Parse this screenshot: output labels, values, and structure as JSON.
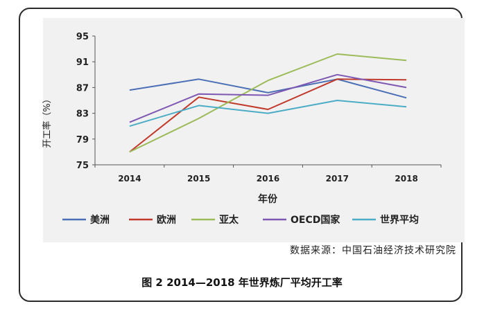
{
  "chart_data": {
    "type": "line",
    "ylabel": "开工率（%）",
    "xlabel": "年份",
    "categories": [
      "2014",
      "2015",
      "2016",
      "2017",
      "2018"
    ],
    "ylim": [
      75,
      95
    ],
    "yticks": [
      75,
      79,
      83,
      87,
      91,
      95
    ],
    "grid": false,
    "legend_position": "bottom",
    "series": [
      {
        "name": "美洲",
        "color": "#4a6fb5",
        "values": [
          86.6,
          88.3,
          86.2,
          88.3,
          85.4
        ]
      },
      {
        "name": "欧洲",
        "color": "#c0392b",
        "values": [
          77.0,
          85.5,
          83.6,
          88.3,
          88.2
        ]
      },
      {
        "name": "亚太",
        "color": "#9bbb59",
        "values": [
          77.0,
          82.2,
          88.1,
          92.2,
          91.2
        ]
      },
      {
        "name": "OECD国家",
        "color": "#7e57b2",
        "values": [
          81.6,
          86.0,
          85.8,
          89.0,
          87.0
        ]
      },
      {
        "name": "世界平均",
        "color": "#4bacc6",
        "values": [
          81.0,
          84.2,
          83.0,
          85.0,
          84.0
        ]
      }
    ]
  },
  "source_text": "数据来源：中国石油经济技术研究院",
  "caption": "图 2   2014—2018 年世界炼厂平均开工率"
}
